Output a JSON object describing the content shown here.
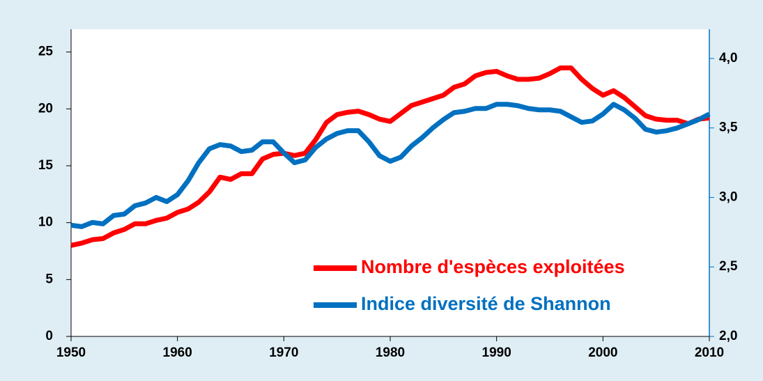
{
  "chart_data": {
    "type": "line",
    "x": [
      1950,
      1951,
      1952,
      1953,
      1954,
      1955,
      1956,
      1957,
      1958,
      1959,
      1960,
      1961,
      1962,
      1963,
      1964,
      1965,
      1966,
      1967,
      1968,
      1969,
      1970,
      1971,
      1972,
      1973,
      1974,
      1975,
      1976,
      1977,
      1978,
      1979,
      1980,
      1981,
      1982,
      1983,
      1984,
      1985,
      1986,
      1987,
      1988,
      1989,
      1990,
      1991,
      1992,
      1993,
      1994,
      1995,
      1996,
      1997,
      1998,
      1999,
      2000,
      2001,
      2002,
      2003,
      2004,
      2005,
      2006,
      2007,
      2008,
      2009,
      2010
    ],
    "series": [
      {
        "name": "Nombre d'espèces exploitées",
        "color": "#ff0000",
        "values": [
          8.0,
          8.2,
          8.5,
          8.6,
          9.1,
          9.4,
          9.9,
          9.9,
          10.2,
          10.4,
          10.9,
          11.2,
          11.8,
          12.7,
          14.0,
          13.8,
          14.3,
          14.3,
          15.6,
          16.0,
          16.1,
          15.9,
          16.1,
          17.3,
          18.8,
          19.5,
          19.7,
          19.8,
          19.5,
          19.1,
          18.9,
          19.6,
          20.3,
          20.6,
          20.9,
          21.2,
          21.9,
          22.2,
          22.9,
          23.2,
          23.3,
          22.9,
          22.6,
          22.6,
          22.7,
          23.1,
          23.6,
          23.6,
          22.6,
          21.8,
          21.2,
          21.6,
          21.0,
          20.2,
          19.4,
          19.1,
          19.0,
          19.0,
          18.7,
          19.1,
          19.2
        ]
      },
      {
        "name": "Indice diversité de Shannon",
        "color": "#0070c0",
        "axis": "y2",
        "values": [
          2.8,
          2.79,
          2.82,
          2.81,
          2.87,
          2.88,
          2.94,
          2.96,
          3.0,
          2.97,
          3.02,
          3.12,
          3.25,
          3.35,
          3.38,
          3.37,
          3.33,
          3.34,
          3.4,
          3.4,
          3.32,
          3.25,
          3.27,
          3.36,
          3.42,
          3.46,
          3.48,
          3.48,
          3.4,
          3.3,
          3.26,
          3.29,
          3.37,
          3.43,
          3.5,
          3.56,
          3.61,
          3.62,
          3.64,
          3.64,
          3.67,
          3.67,
          3.66,
          3.64,
          3.63,
          3.63,
          3.62,
          3.58,
          3.54,
          3.55,
          3.6,
          3.67,
          3.63,
          3.57,
          3.49,
          3.47,
          3.48,
          3.5,
          3.53,
          3.56,
          3.6
        ]
      }
    ],
    "xlim": [
      1950,
      2010
    ],
    "xticks": [
      1950,
      1960,
      1970,
      1980,
      1990,
      2000,
      2010
    ],
    "ylim": [
      0,
      27
    ],
    "yticks": [
      0,
      5,
      10,
      15,
      20,
      25
    ],
    "y2lim": [
      2.0,
      4.21
    ],
    "y2ticks": [
      {
        "value": 2.0,
        "label": "2,0"
      },
      {
        "value": 2.5,
        "label": "2,5"
      },
      {
        "value": 3.0,
        "label": "3,0"
      },
      {
        "value": 3.5,
        "label": "3,5"
      },
      {
        "value": 4.0,
        "label": "4,0"
      }
    ],
    "legend": "lower right"
  }
}
